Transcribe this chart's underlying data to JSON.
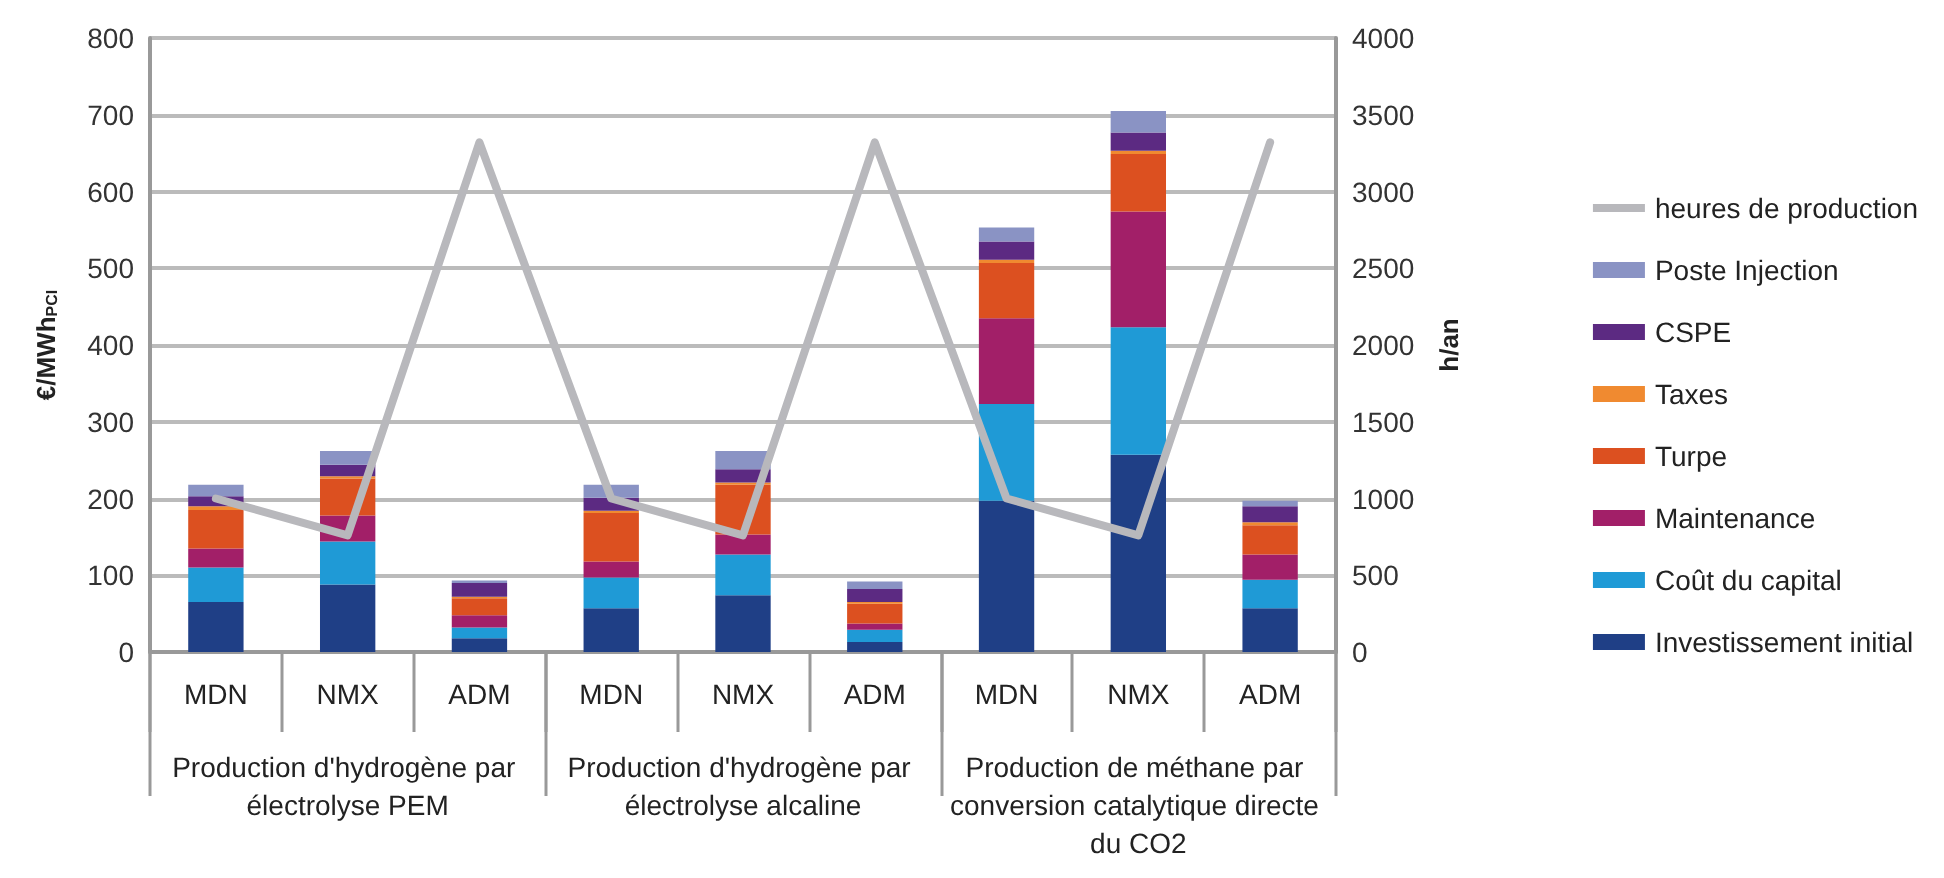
{
  "chart_data": {
    "type": "bar",
    "stacked": true,
    "categories": [
      "MDN",
      "NMX",
      "ADM",
      "MDN",
      "NMX",
      "ADM",
      "MDN",
      "NMX",
      "ADM"
    ],
    "annotations": [
      "Production d'hydrogène par électrolyse PEM",
      "Production d'hydrogène par électrolyse alcaline",
      "Production de méthane par conversion catalytique directe du CO2"
    ],
    "ylabel": "€/MWh$_{PCI}$",
    "y2label": "h/an",
    "ylim": [
      0,
      800
    ],
    "yticks": [
      0,
      100,
      200,
      300,
      400,
      500,
      600,
      700,
      800
    ],
    "y2lim": [
      0,
      4000
    ],
    "y2ticks": [
      0,
      500,
      1000,
      1500,
      2000,
      2500,
      3000,
      3500,
      4000
    ],
    "grid": "y",
    "legend": "right",
    "series": [
      {
        "name": "Investissement initial",
        "color": "#1f3f86",
        "values": [
          65,
          88,
          18,
          57,
          74,
          13,
          197,
          257,
          57
        ]
      },
      {
        "name": "Coût du capital",
        "color": "#1f9ad6",
        "values": [
          45,
          56,
          14,
          40,
          53,
          16,
          126,
          166,
          37
        ]
      },
      {
        "name": "Maintenance",
        "color": "#a21f68",
        "values": [
          25,
          34,
          16,
          21,
          26,
          8,
          112,
          151,
          33
        ]
      },
      {
        "name": "Turpe",
        "color": "#dc5020",
        "values": [
          50,
          48,
          22,
          63,
          65,
          26,
          72,
          75,
          38
        ]
      },
      {
        "name": "Taxes",
        "color": "#f08a30",
        "values": [
          5,
          3,
          2,
          3,
          3,
          2,
          4,
          4,
          4
        ]
      },
      {
        "name": "CSPE",
        "color": "#5c2a82",
        "values": [
          13,
          15,
          18,
          17,
          17,
          17,
          24,
          24,
          21
        ]
      },
      {
        "name": "Poste Injection",
        "color": "#8a93c4",
        "values": [
          15,
          18,
          3,
          17,
          24,
          10,
          18,
          28,
          7
        ]
      },
      {
        "name": "heures de production",
        "type": "line",
        "axis": "y2",
        "color": "#b8b8bc",
        "marker": "none",
        "values": [
          1000,
          760,
          3320,
          1000,
          760,
          3320,
          1000,
          760,
          3320
        ]
      }
    ]
  }
}
